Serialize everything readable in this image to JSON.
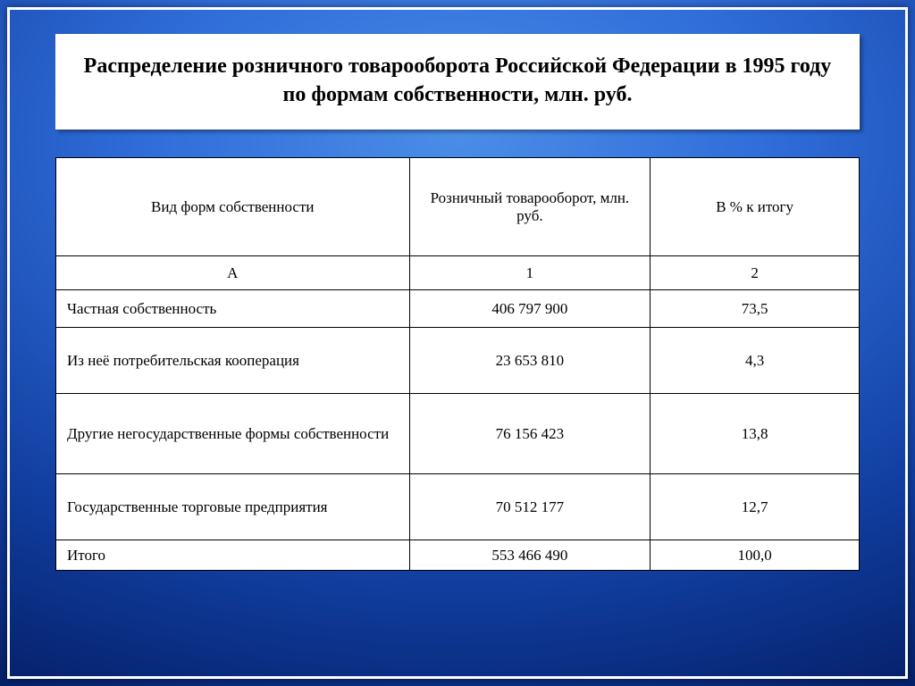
{
  "title": "Распределение розничного товарооборота Российской Федерации в 1995 году по формам собственности, млн. руб.",
  "table": {
    "headers": {
      "col1": "Вид форм собственности",
      "col2": "Розничный товарооборот, млн. руб.",
      "col3": "В % к итогу"
    },
    "subheaders": {
      "col1": "А",
      "col2": "1",
      "col3": "2"
    },
    "rows": [
      {
        "name": "Частная собственность",
        "turnover": "406 797 900",
        "percent": "73,5",
        "size": "r-sm"
      },
      {
        "name": "Из неё потребительская кооперация",
        "turnover": "23 653 810",
        "percent": "4,3",
        "size": "r-md"
      },
      {
        "name": "Другие негосударственные формы собственности",
        "turnover": "76 156 423",
        "percent": "13,8",
        "size": "r-lg"
      },
      {
        "name": "Государственные торговые предприятия",
        "turnover": "70 512 177",
        "percent": "12,7",
        "size": "r-md"
      },
      {
        "name": "Итого",
        "turnover": "553 466 490",
        "percent": "100,0",
        "size": "r-xs"
      }
    ]
  },
  "colors": {
    "background_gradient_center": "#4a8de8",
    "background_gradient_edge": "#010d33",
    "panel_bg": "#ffffff",
    "border": "#000000",
    "frame": "#ffffff"
  },
  "typography": {
    "title_fontsize_pt": 18,
    "title_weight": "bold",
    "cell_fontsize_pt": 13,
    "font_family": "Times New Roman"
  },
  "layout": {
    "slide_width": 1024,
    "slide_height": 768,
    "column_widths_pct": [
      44,
      30,
      26
    ]
  }
}
